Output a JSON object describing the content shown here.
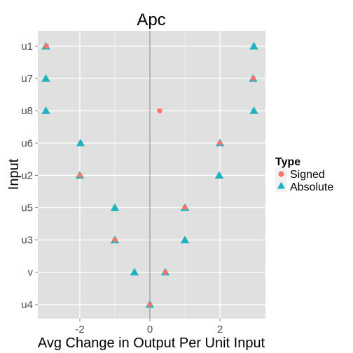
{
  "chart_data": {
    "type": "scatter",
    "title": "Apc",
    "xlabel": "Avg Change in Output Per Unit Input",
    "ylabel": "Input",
    "xlim": [
      -3.2,
      3.3
    ],
    "x_ticks": [
      -2,
      0,
      2
    ],
    "x_tick_labels": [
      "-2",
      "0",
      "2"
    ],
    "categories": [
      "u1",
      "u7",
      "u8",
      "u6",
      "u2",
      "u5",
      "u3",
      "v",
      "u4"
    ],
    "grid": true,
    "legend": {
      "title": "Type",
      "placement": "right"
    },
    "series": [
      {
        "name": "Signed",
        "marker": "circle",
        "color": "#F8766D",
        "points": [
          {
            "category": "u1",
            "x": -2.95
          },
          {
            "category": "u7",
            "x": 2.95
          },
          {
            "category": "u8",
            "x": 0.28
          },
          {
            "category": "u6",
            "x": 2.0
          },
          {
            "category": "u2",
            "x": -2.0
          },
          {
            "category": "u5",
            "x": 1.0
          },
          {
            "category": "u3",
            "x": -1.0
          },
          {
            "category": "v",
            "x": 0.44
          },
          {
            "category": "u4",
            "x": 0.0
          }
        ]
      },
      {
        "name": "Absolute",
        "marker": "triangle",
        "color": "#1FB3C1",
        "points": [
          {
            "category": "u1",
            "x": -2.97
          },
          {
            "category": "u1",
            "x": 2.97
          },
          {
            "category": "u7",
            "x": -2.97
          },
          {
            "category": "u7",
            "x": 2.95
          },
          {
            "category": "u8",
            "x": -2.97
          },
          {
            "category": "u8",
            "x": 2.97
          },
          {
            "category": "u6",
            "x": -1.98
          },
          {
            "category": "u6",
            "x": 2.0
          },
          {
            "category": "u2",
            "x": -2.0
          },
          {
            "category": "u2",
            "x": 1.98
          },
          {
            "category": "u5",
            "x": -1.0
          },
          {
            "category": "u5",
            "x": 1.0
          },
          {
            "category": "u3",
            "x": -1.0
          },
          {
            "category": "u3",
            "x": 1.0
          },
          {
            "category": "v",
            "x": -0.44
          },
          {
            "category": "v",
            "x": 0.44
          },
          {
            "category": "u4",
            "x": 0.0
          }
        ]
      }
    ]
  }
}
